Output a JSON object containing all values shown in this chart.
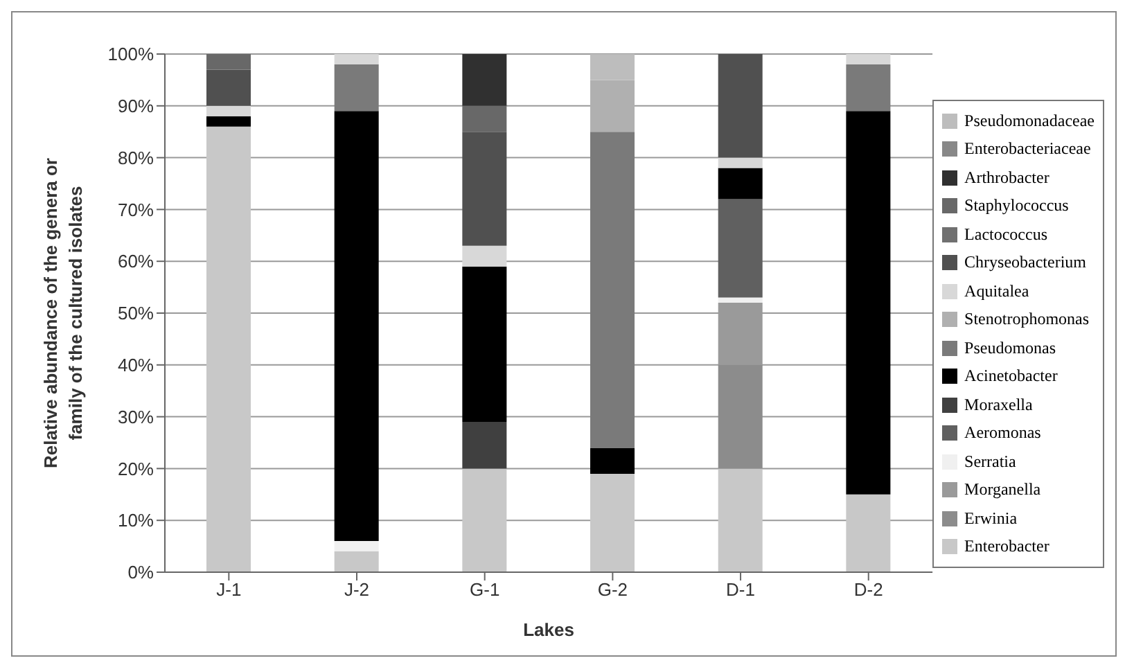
{
  "chart_data": {
    "type": "bar",
    "stacked": true,
    "xlabel": "Lakes",
    "ylabel": "Relative abundance of the genera or family of the cultured isolates",
    "categories": [
      "J-1",
      "J-2",
      "G-1",
      "G-2",
      "D-1",
      "D-2"
    ],
    "ylim": [
      0,
      100
    ],
    "yticks": [
      {
        "value": 0,
        "label": "0%"
      },
      {
        "value": 10,
        "label": "10%"
      },
      {
        "value": 20,
        "label": "20%"
      },
      {
        "value": 30,
        "label": "30%"
      },
      {
        "value": 40,
        "label": "40%"
      },
      {
        "value": 50,
        "label": "50%"
      },
      {
        "value": 60,
        "label": "60%"
      },
      {
        "value": 70,
        "label": "70%"
      },
      {
        "value": 80,
        "label": "80%"
      },
      {
        "value": 90,
        "label": "90%"
      },
      {
        "value": 100,
        "label": "100%"
      }
    ],
    "grid": "y",
    "legend": "right",
    "series": [
      {
        "name": "Enterobacter",
        "color": "#c8c8c8",
        "values": [
          86,
          4,
          20,
          19,
          20,
          15
        ]
      },
      {
        "name": "Erwinia",
        "color": "#8c8c8c",
        "values": [
          null,
          null,
          null,
          null,
          20,
          null
        ]
      },
      {
        "name": "Morganella",
        "color": "#9a9a9a",
        "values": [
          null,
          null,
          null,
          null,
          12,
          null
        ]
      },
      {
        "name": "Serratia",
        "color": "#f0f0f0",
        "values": [
          null,
          2,
          null,
          null,
          1,
          null
        ]
      },
      {
        "name": "Aeromonas",
        "color": "#606060",
        "values": [
          null,
          null,
          null,
          null,
          19,
          null
        ]
      },
      {
        "name": "Moraxella",
        "color": "#404040",
        "values": [
          null,
          null,
          9,
          null,
          null,
          null
        ]
      },
      {
        "name": "Acinetobacter",
        "color": "#000000",
        "values": [
          2,
          83,
          30,
          5,
          6,
          74
        ]
      },
      {
        "name": "Pseudomonas",
        "color": "#7a7a7a",
        "values": [
          null,
          9,
          null,
          61,
          null,
          9
        ]
      },
      {
        "name": "Stenotrophomonas",
        "color": "#b0b0b0",
        "values": [
          null,
          null,
          null,
          10,
          null,
          null
        ]
      },
      {
        "name": "Aquitalea",
        "color": "#d8d8d8",
        "values": [
          2,
          2,
          4,
          null,
          2,
          2
        ]
      },
      {
        "name": "Chryseobacterium",
        "color": "#505050",
        "values": [
          7,
          null,
          22,
          null,
          20,
          null
        ]
      },
      {
        "name": "Lactococcus",
        "color": "#707070",
        "values": [
          null,
          null,
          null,
          null,
          null,
          null
        ]
      },
      {
        "name": "Staphylococcus",
        "color": "#686868",
        "values": [
          3,
          null,
          5,
          null,
          null,
          null
        ]
      },
      {
        "name": "Arthrobacter",
        "color": "#303030",
        "values": [
          null,
          null,
          10,
          null,
          null,
          null
        ]
      },
      {
        "name": "Enterobacteriaceae",
        "color": "#888888",
        "values": [
          null,
          null,
          null,
          null,
          null,
          null
        ]
      },
      {
        "name": "Pseudomonadaceae",
        "color": "#bdbdbd",
        "values": [
          null,
          null,
          null,
          5,
          null,
          null
        ]
      }
    ]
  }
}
